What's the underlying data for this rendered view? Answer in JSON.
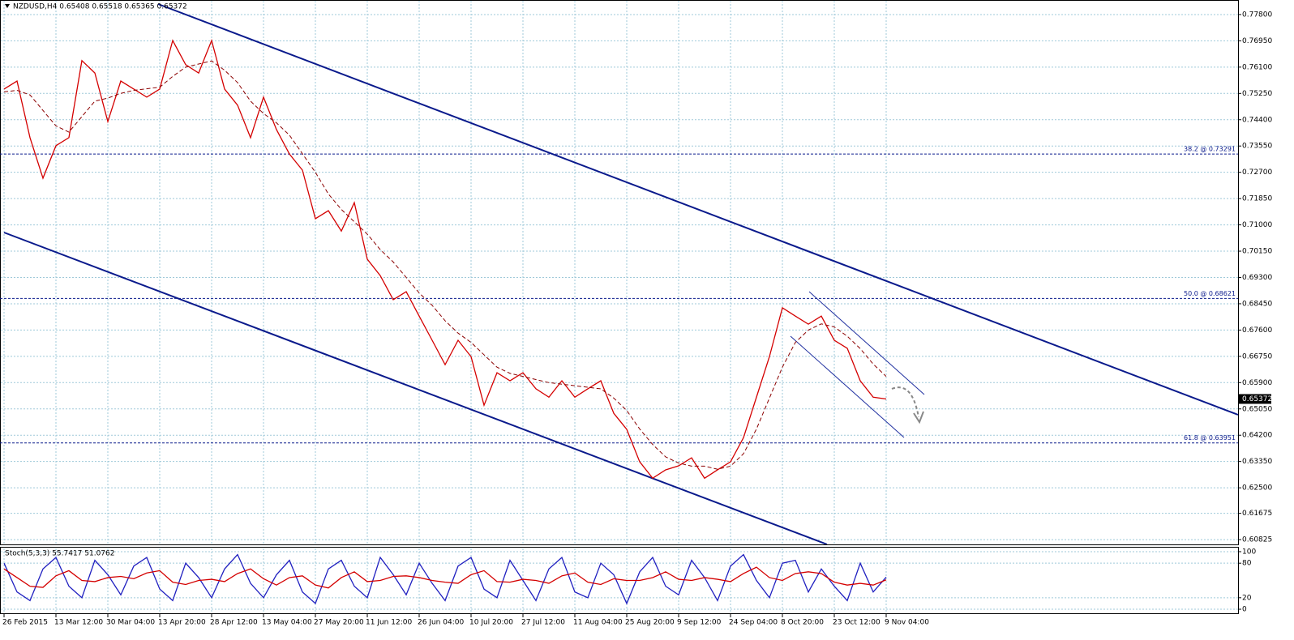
{
  "chart_data": [
    {
      "type": "line",
      "title": "NZDUSD,H4  0.65408 0.65518 0.65365 0.65372",
      "categories": [
        "26 Feb 2015",
        null,
        null,
        null,
        "13 Mar 12:00",
        null,
        null,
        null,
        "30 Mar 04:00",
        null,
        null,
        null,
        "13 Apr 20:00",
        null,
        null,
        null,
        "28 Apr 12:00",
        null,
        null,
        null,
        "13 May 04:00",
        null,
        null,
        null,
        "27 May 20:00",
        null,
        null,
        null,
        "11 Jun 12:00",
        null,
        null,
        null,
        "26 Jun 04:00",
        null,
        null,
        null,
        "10 Jul 20:00",
        null,
        null,
        null,
        "27 Jul 12:00",
        null,
        null,
        null,
        "11 Aug 04:00",
        null,
        null,
        null,
        "25 Aug 20:00",
        null,
        null,
        null,
        "9 Sep 12:00",
        null,
        null,
        null,
        "24 Sep 04:00",
        null,
        null,
        null,
        "8 Oct 20:00",
        null,
        null,
        null,
        "23 Oct 12:00",
        null,
        null,
        null,
        "9 Nov 04:00"
      ],
      "series": [
        {
          "color": "#d40000",
          "style": "solid",
          "values": [
            0.7539,
            0.7565,
            0.7382,
            0.7251,
            0.7356,
            0.7382,
            0.7631,
            0.7591,
            0.7434,
            0.7565,
            0.7539,
            0.7513,
            0.7539,
            0.7696,
            0.7618,
            0.7591,
            0.7696,
            0.7539,
            0.7487,
            0.7382,
            0.7513,
            0.7408,
            0.7329,
            0.7277,
            0.712,
            0.7146,
            0.708,
            0.7172,
            0.6989,
            0.6936,
            0.6858,
            0.6884,
            0.6805,
            0.6727,
            0.6648,
            0.6727,
            0.6674,
            0.6517,
            0.6622,
            0.6596,
            0.6622,
            0.657,
            0.6543,
            0.6596,
            0.6543,
            0.657,
            0.6596,
            0.6491,
            0.6439,
            0.6334,
            0.6281,
            0.6308,
            0.6321,
            0.6347,
            0.6281,
            0.6308,
            0.6334,
            0.6412,
            0.6543,
            0.6674,
            0.6832,
            0.6805,
            0.6779,
            0.6805,
            0.6727,
            0.6701,
            0.6596,
            0.6543,
            0.65372
          ]
        },
        {
          "color": "#8b0000",
          "style": "dashed",
          "values": [
            0.753,
            0.7535,
            0.752,
            0.747,
            0.742,
            0.74,
            0.745,
            0.75,
            0.751,
            0.7525,
            0.7535,
            0.754,
            0.7545,
            0.758,
            0.761,
            0.762,
            0.763,
            0.76,
            0.756,
            0.75,
            0.746,
            0.743,
            0.739,
            0.733,
            0.727,
            0.72,
            0.715,
            0.711,
            0.707,
            0.702,
            0.698,
            0.693,
            0.688,
            0.684,
            0.679,
            0.675,
            0.672,
            0.668,
            0.664,
            0.662,
            0.661,
            0.66,
            0.659,
            0.6585,
            0.658,
            0.6575,
            0.657,
            0.654,
            0.65,
            0.644,
            0.639,
            0.635,
            0.633,
            0.632,
            0.632,
            0.631,
            0.632,
            0.636,
            0.644,
            0.654,
            0.664,
            0.672,
            0.676,
            0.678,
            0.677,
            0.674,
            0.67,
            0.665,
            0.661
          ]
        }
      ],
      "ylim": [
        0.6067,
        0.7827
      ],
      "yticks": [
        {
          "value": 0.778,
          "label": "0.77800"
        },
        {
          "value": 0.7695,
          "label": "0.76950"
        },
        {
          "value": 0.761,
          "label": "0.76100"
        },
        {
          "value": 0.7525,
          "label": "0.75250"
        },
        {
          "value": 0.744,
          "label": "0.74400"
        },
        {
          "value": 0.7355,
          "label": "0.73550"
        },
        {
          "value": 0.727,
          "label": "0.72700"
        },
        {
          "value": 0.7185,
          "label": "0.71850"
        },
        {
          "value": 0.71,
          "label": "0.71000"
        },
        {
          "value": 0.7015,
          "label": "0.70150"
        },
        {
          "value": 0.693,
          "label": "0.69300"
        },
        {
          "value": 0.6845,
          "label": "0.68450"
        },
        {
          "value": 0.676,
          "label": "0.67600"
        },
        {
          "value": 0.6675,
          "label": "0.66750"
        },
        {
          "value": 0.659,
          "label": "0.65900"
        },
        {
          "value": 0.6505,
          "label": "0.65050"
        },
        {
          "value": 0.642,
          "label": "0.64200"
        },
        {
          "value": 0.6335,
          "label": "0.63350"
        },
        {
          "value": 0.625,
          "label": "0.62500"
        },
        {
          "value": 0.61675,
          "label": "0.61675"
        },
        {
          "value": 0.60825,
          "label": "0.60825"
        }
      ],
      "grid": true,
      "levels": [
        {
          "value": 0.73291,
          "label": "38.2 @ 0.73291"
        },
        {
          "value": 0.68621,
          "label": "50.0 @ 0.68621"
        },
        {
          "value": 0.63951,
          "label": "61.8 @ 0.63951"
        }
      ],
      "last_price": 0.65372
    },
    {
      "type": "line",
      "title": "Stoch(5,3,3) 55.7417 51.0762",
      "series": [
        {
          "color": "#2020c0",
          "style": "solid",
          "values": [
            80,
            30,
            15,
            70,
            90,
            40,
            20,
            85,
            60,
            25,
            75,
            90,
            35,
            15,
            80,
            55,
            20,
            70,
            95,
            45,
            20,
            60,
            85,
            30,
            10,
            70,
            85,
            40,
            20,
            90,
            60,
            25,
            80,
            45,
            15,
            75,
            90,
            35,
            20,
            85,
            50,
            15,
            70,
            90,
            30,
            20,
            80,
            60,
            10,
            65,
            90,
            40,
            25,
            85,
            55,
            15,
            75,
            95,
            50,
            20,
            80,
            85,
            30,
            70,
            40,
            15,
            80,
            30,
            55.7417
          ]
        },
        {
          "color": "#d40000",
          "style": "solid",
          "values": [
            70,
            55,
            40,
            38,
            58,
            67,
            50,
            48,
            55,
            57,
            53,
            63,
            67,
            47,
            43,
            50,
            52,
            48,
            62,
            70,
            53,
            42,
            55,
            58,
            42,
            37,
            55,
            65,
            48,
            50,
            57,
            58,
            55,
            50,
            47,
            45,
            60,
            67,
            48,
            47,
            52,
            50,
            45,
            58,
            63,
            47,
            43,
            53,
            50,
            50,
            55,
            65,
            52,
            50,
            55,
            52,
            48,
            62,
            73,
            55,
            50,
            62,
            65,
            62,
            47,
            42,
            45,
            42,
            51.0762
          ]
        }
      ],
      "ylim": [
        -7,
        107
      ],
      "yticks": [
        0,
        20,
        80,
        100
      ],
      "grid": true
    }
  ]
}
